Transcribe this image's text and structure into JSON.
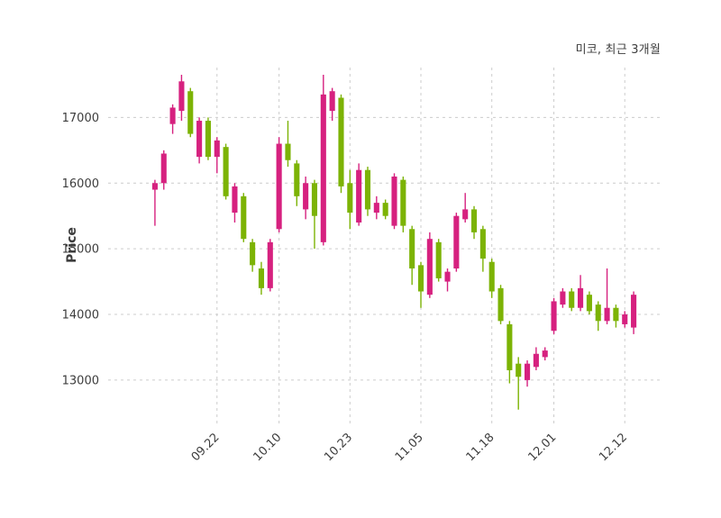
{
  "chart_data": {
    "type": "candlestick",
    "title": "미코, 최근 3개월",
    "ylabel": "Price",
    "xlabel": "",
    "y_ticks": [
      13000,
      14000,
      15000,
      16000,
      17000
    ],
    "ylim": [
      12340,
      17760
    ],
    "x_ticks": [
      {
        "index": 7,
        "label": "09.22"
      },
      {
        "index": 14,
        "label": "10.10"
      },
      {
        "index": 22,
        "label": "10.23"
      },
      {
        "index": 30,
        "label": "11.05"
      },
      {
        "index": 38,
        "label": "11.18"
      },
      {
        "index": 45,
        "label": "12.01"
      },
      {
        "index": 53,
        "label": "12.12"
      }
    ],
    "grid": true,
    "grid_style": "dashed",
    "legend": "none",
    "colors": {
      "up": "#d6217f",
      "down": "#7cb305",
      "grid": "#cccccc",
      "text": "#3d3d3d",
      "background": "#ffffff"
    },
    "candles_format": [
      "open",
      "high",
      "low",
      "close"
    ],
    "candles": [
      [
        15900,
        16050,
        15350,
        16000
      ],
      [
        16000,
        16500,
        15900,
        16450
      ],
      [
        16900,
        17200,
        16750,
        17150
      ],
      [
        17100,
        17650,
        16950,
        17550
      ],
      [
        17400,
        17450,
        16700,
        16750
      ],
      [
        16400,
        17000,
        16300,
        16950
      ],
      [
        16950,
        17000,
        16350,
        16400
      ],
      [
        16400,
        16700,
        16150,
        16650
      ],
      [
        16550,
        16600,
        15750,
        15800
      ],
      [
        15550,
        16000,
        15400,
        15950
      ],
      [
        15800,
        15850,
        15100,
        15150
      ],
      [
        15100,
        15150,
        14650,
        14750
      ],
      [
        14700,
        14800,
        14300,
        14400
      ],
      [
        14400,
        15150,
        14350,
        15100
      ],
      [
        15300,
        16700,
        15250,
        16600
      ],
      [
        16600,
        16950,
        16250,
        16350
      ],
      [
        16300,
        16350,
        15650,
        15800
      ],
      [
        15600,
        16100,
        15450,
        16000
      ],
      [
        16000,
        16050,
        15000,
        15500
      ],
      [
        15100,
        17650,
        15050,
        17350
      ],
      [
        17100,
        17450,
        16950,
        17400
      ],
      [
        17300,
        17350,
        15850,
        15950
      ],
      [
        16000,
        16200,
        15300,
        15550
      ],
      [
        15400,
        16300,
        15350,
        16200
      ],
      [
        16200,
        16250,
        15500,
        15600
      ],
      [
        15550,
        15800,
        15450,
        15700
      ],
      [
        15700,
        15750,
        15450,
        15500
      ],
      [
        15350,
        16150,
        15300,
        16100
      ],
      [
        16050,
        16100,
        15250,
        15350
      ],
      [
        15300,
        15350,
        14450,
        14700
      ],
      [
        14750,
        14800,
        14100,
        14350
      ],
      [
        14300,
        15250,
        14250,
        15150
      ],
      [
        15100,
        15150,
        14500,
        14550
      ],
      [
        14500,
        14700,
        14350,
        14650
      ],
      [
        14700,
        15550,
        14650,
        15500
      ],
      [
        15450,
        15850,
        15400,
        15600
      ],
      [
        15600,
        15650,
        15150,
        15250
      ],
      [
        15300,
        15350,
        14650,
        14850
      ],
      [
        14800,
        14850,
        14250,
        14350
      ],
      [
        14400,
        14450,
        13850,
        13900
      ],
      [
        13850,
        13900,
        12950,
        13150
      ],
      [
        13250,
        13350,
        12550,
        13050
      ],
      [
        13000,
        13300,
        12900,
        13250
      ],
      [
        13200,
        13500,
        13150,
        13400
      ],
      [
        13350,
        13500,
        13300,
        13450
      ],
      [
        13750,
        14250,
        13700,
        14200
      ],
      [
        14150,
        14400,
        14100,
        14350
      ],
      [
        14350,
        14400,
        14050,
        14100
      ],
      [
        14100,
        14600,
        14050,
        14400
      ],
      [
        14300,
        14350,
        14000,
        14050
      ],
      [
        14150,
        14200,
        13750,
        13900
      ],
      [
        13900,
        14700,
        13850,
        14100
      ],
      [
        14100,
        14150,
        13800,
        13900
      ],
      [
        13850,
        14050,
        13800,
        14000
      ],
      [
        13800,
        14350,
        13700,
        14300
      ]
    ]
  }
}
